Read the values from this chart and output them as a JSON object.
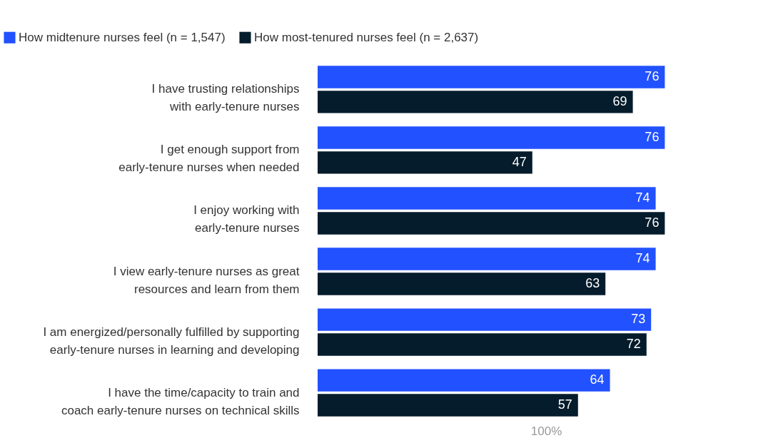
{
  "chart_data": {
    "type": "bar",
    "orientation": "horizontal",
    "categories": [
      "I have trusting relationships\nwith early-tenure nurses",
      "I get enough support from\nearly-tenure nurses when needed",
      "I enjoy working with\nearly-tenure nurses",
      "I view early-tenure nurses as great\nresources and learn from them",
      "I am energized/personally fulfilled by supporting\nearly-tenure nurses in learning and developing",
      "I have the time/capacity to train and\ncoach early-tenure nurses on technical skills"
    ],
    "series": [
      {
        "name": "How midtenure nurses feel  (n = 1,547)",
        "color": "#2251ff",
        "values": [
          76,
          76,
          74,
          74,
          73,
          64
        ]
      },
      {
        "name": "How most-tenured nurses feel  (n = 2,637)",
        "color": "#051c2c",
        "values": [
          69,
          47,
          76,
          63,
          72,
          57
        ]
      }
    ],
    "xlim": [
      0,
      100
    ],
    "xlabel": "100%",
    "tick_labels": "y",
    "data_labels": true,
    "legend": "top left",
    "grid": false
  }
}
